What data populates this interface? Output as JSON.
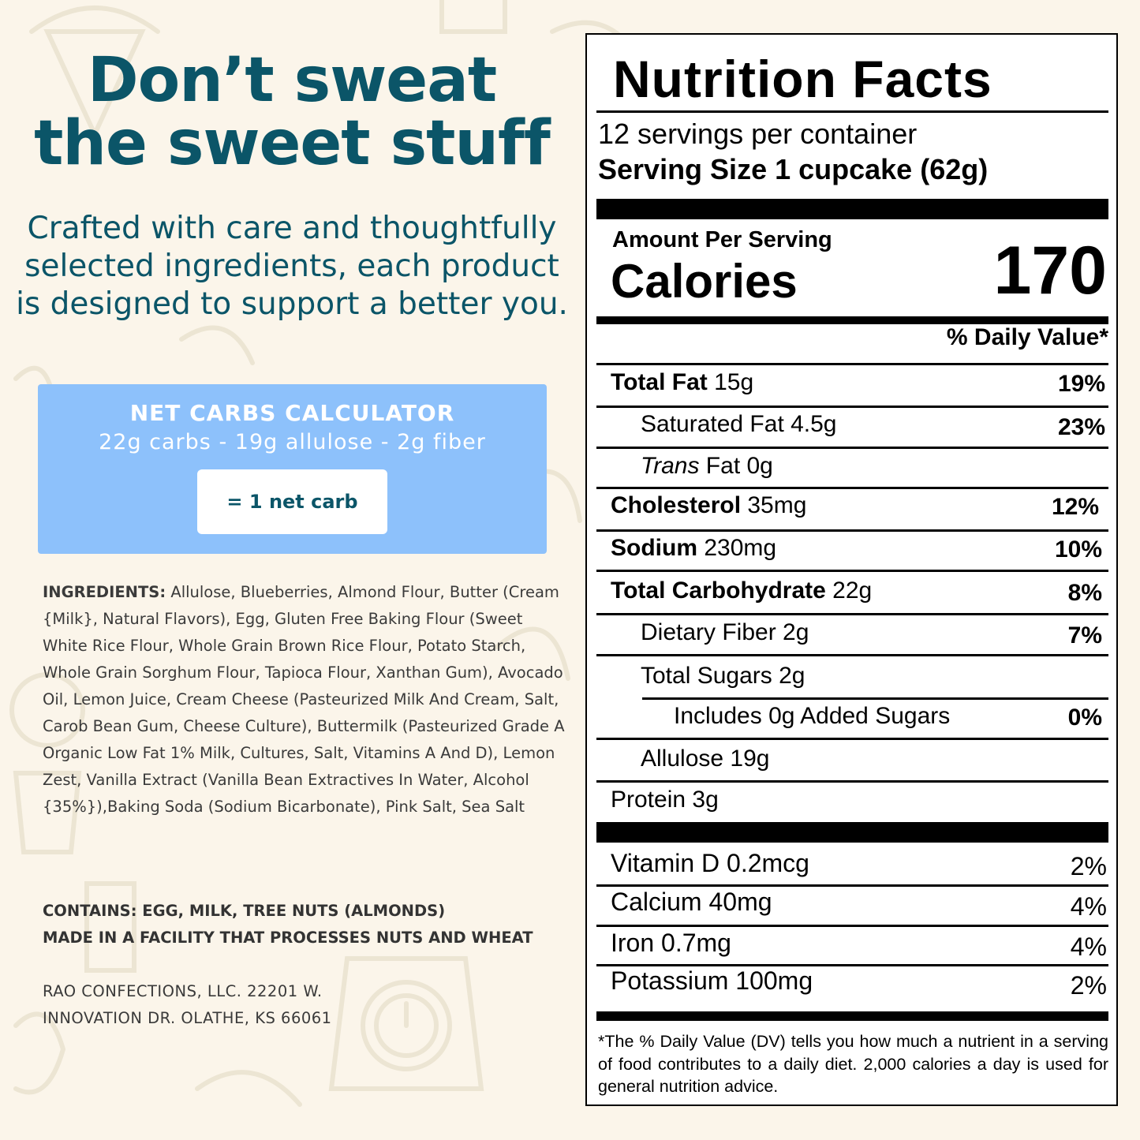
{
  "headline": {
    "line1": "Don’t sweat",
    "line2": "the sweet stuff"
  },
  "subhead": "Crafted with care and thoughtfully selected ingredients, each product is designed to support a better you.",
  "calculator": {
    "title": "NET CARBS CALCULATOR",
    "formula": "22g carbs - 19g allulose - 2g fiber",
    "result": "= 1 net carb"
  },
  "ingredients": {
    "label": "INGREDIENTS:",
    "text": " Allulose, Blueberries, Almond Flour, Butter (Cream {Milk}, Natural Flavors), Egg, Gluten Free Baking Flour (Sweet White Rice Flour, Whole Grain Brown Rice Flour, Potato Starch, Whole Grain Sorghum Flour, Tapioca Flour, Xanthan Gum), Avocado Oil, Lemon Juice, Cream Cheese (Pasteurized Milk And Cream, Salt, Carob Bean Gum, Cheese Culture), Buttermilk (Pasteurized Grade A Organic Low Fat 1% Milk, Cultures, Salt, Vitamins A And D), Lemon Zest, Vanilla Extract (Vanilla Bean Extractives In Water, Alcohol {35%}),Baking Soda (Sodium Bicarbonate), Pink Salt, Sea Salt"
  },
  "contains": "CONTAINS: EGG, MILK, TREE NUTS (ALMONDS)",
  "facility": "MADE IN A FACILITY THAT PROCESSES NUTS AND WHEAT",
  "address": {
    "line1": "RAO CONFECTIONS, LLC. 22201 W.",
    "line2": "INNOVATION DR. OLATHE, KS 66061"
  },
  "nutrition": {
    "title": "Nutrition Facts",
    "servings": "12 servings per container",
    "serving_size": "Serving Size 1 cupcake (62g)",
    "amount_per_serving": "Amount Per Serving",
    "calories_label": "Calories",
    "calories": "170",
    "dv_header": "% Daily Value*",
    "total_fat": {
      "name": "Total Fat",
      "amount": " 15g",
      "dv": "19%"
    },
    "saturated_fat": {
      "name": "Saturated Fat 4.5g",
      "dv": "23%"
    },
    "trans_fat": {
      "name_italic": "Trans",
      "rest": " Fat 0g"
    },
    "cholesterol": {
      "name": "Cholesterol",
      "amount": " 35mg",
      "dv": "12%"
    },
    "sodium": {
      "name": "Sodium",
      "amount": " 230mg",
      "dv": "10%"
    },
    "total_carb": {
      "name": "Total Carbohydrate",
      "amount": " 22g",
      "dv": "8%"
    },
    "dietary_fiber": {
      "name": "Dietary Fiber 2g",
      "dv": "7%"
    },
    "total_sugars": {
      "name": "Total Sugars 2g"
    },
    "added_sugars": {
      "name": "Includes 0g Added Sugars",
      "dv": "0%"
    },
    "allulose": {
      "name": "Allulose 19g"
    },
    "protein": {
      "name": "Protein 3g"
    },
    "vitamin_d": {
      "name": "Vitamin D 0.2mcg",
      "dv": "2%"
    },
    "calcium": {
      "name": "Calcium 40mg",
      "dv": "4%"
    },
    "iron": {
      "name": "Iron 0.7mg",
      "dv": "4%"
    },
    "potassium": {
      "name": "Potassium 100mg",
      "dv": "2%"
    },
    "footnote": "*The % Daily Value (DV) tells you how much a nutrient in a serving of food contributes to a daily diet. 2,000 calories a day is used for general nutrition advice."
  },
  "colors": {
    "background": "#fbf5ea",
    "brand_teal": "#0b5568",
    "calculator_blue": "#8dc1fb"
  }
}
